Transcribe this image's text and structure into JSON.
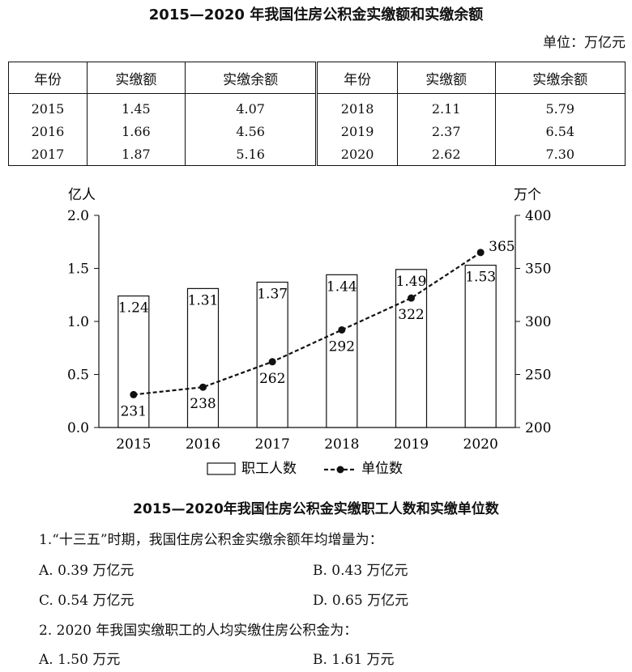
{
  "table": {
    "title": "2015—2020 年我国住房公积金实缴额和实缴余额",
    "unit": "单位：万亿元",
    "headers": [
      "年份",
      "实缴额",
      "实缴余额",
      "年份",
      "实缴额",
      "实缴余额"
    ],
    "rows": [
      [
        "2015",
        "1.45",
        "4.07",
        "2018",
        "2.11",
        "5.79"
      ],
      [
        "2016",
        "1.66",
        "4.56",
        "2019",
        "2.37",
        "6.54"
      ],
      [
        "2017",
        "1.87",
        "5.16",
        "2020",
        "2.62",
        "7.30"
      ]
    ]
  },
  "chart_data": {
    "type": "bar",
    "title": "2015—2020年我国住房公积金实缴职工人数和实缴单位数",
    "categories": [
      "2015",
      "2016",
      "2017",
      "2018",
      "2019",
      "2020"
    ],
    "series": [
      {
        "name": "职工人数",
        "type": "bar",
        "axis": "left",
        "values": [
          1.24,
          1.31,
          1.37,
          1.44,
          1.49,
          1.53
        ],
        "labels": [
          "1.24",
          "1.31",
          "1.37",
          "1.44",
          "1.49",
          "1.53"
        ]
      },
      {
        "name": "单位数",
        "type": "line",
        "axis": "right",
        "values": [
          231,
          238,
          262,
          292,
          322,
          365
        ],
        "labels": [
          "231",
          "238",
          "262",
          "292",
          "322",
          "365"
        ]
      }
    ],
    "y_left": {
      "label": "亿人",
      "ylim": [
        0,
        2
      ],
      "ticks": [
        "0.0",
        "0.5",
        "1.0",
        "1.5",
        "2.0"
      ]
    },
    "y_right": {
      "label": "万个",
      "ylim": [
        200,
        400
      ],
      "ticks": [
        "200",
        "250",
        "300",
        "350",
        "400"
      ]
    },
    "legend_position": "bottom",
    "grid": false
  },
  "questions": [
    {
      "text": "1.“十三五”时期，我国住房公积金实缴余额年均增量为：",
      "options": [
        "A. 0.39 万亿元",
        "B. 0.43 万亿元",
        "C. 0.54 万亿元",
        "D. 0.65 万亿元"
      ]
    },
    {
      "text": "2. 2020 年我国实缴职工的人均实缴住房公积金为：",
      "options": [
        "A. 1.50 万元",
        "B. 1.61 万元"
      ]
    }
  ]
}
